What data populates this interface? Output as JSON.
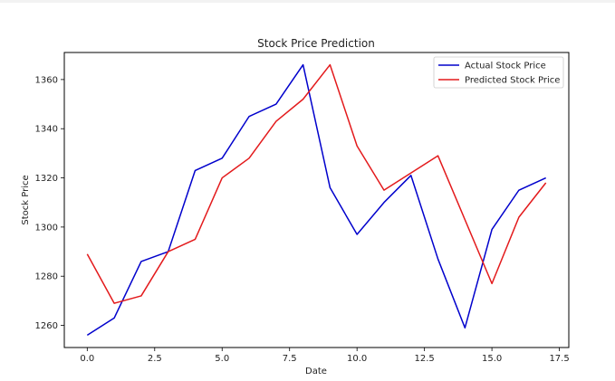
{
  "chart_data": {
    "type": "line",
    "title": "Stock Price Prediction",
    "xlabel": "Date",
    "ylabel": "Stock Price",
    "xlim": [
      -0.85,
      17.85
    ],
    "ylim": [
      1251,
      1371
    ],
    "x": [
      0,
      1,
      2,
      3,
      4,
      5,
      6,
      7,
      8,
      9,
      10,
      11,
      12,
      13,
      14,
      15,
      16,
      17
    ],
    "xticks": [
      0.0,
      2.5,
      5.0,
      7.5,
      10.0,
      12.5,
      15.0,
      17.5
    ],
    "xtick_labels": [
      "0.0",
      "2.5",
      "5.0",
      "7.5",
      "10.0",
      "12.5",
      "15.0",
      "17.5"
    ],
    "yticks": [
      1260,
      1280,
      1300,
      1320,
      1340,
      1360
    ],
    "ytick_labels": [
      "1260",
      "1280",
      "1300",
      "1320",
      "1340",
      "1360"
    ],
    "series": [
      {
        "name": "Actual Stock Price",
        "color": "#0000cc",
        "values": [
          1256,
          1263,
          1286,
          1290,
          1323,
          1328,
          1345,
          1350,
          1366,
          1316,
          1297,
          1310,
          1321,
          1287,
          1259,
          1299,
          1315,
          1320
        ]
      },
      {
        "name": "Predicted Stock Price",
        "color": "#e31a1c",
        "values": [
          1289,
          1269,
          1272,
          1290,
          1295,
          1320,
          1328,
          1343,
          1352,
          1366,
          1333,
          1315,
          1322,
          1329,
          1303,
          1277,
          1304,
          1318
        ]
      }
    ],
    "grid": false,
    "legend_position": "top-right"
  }
}
